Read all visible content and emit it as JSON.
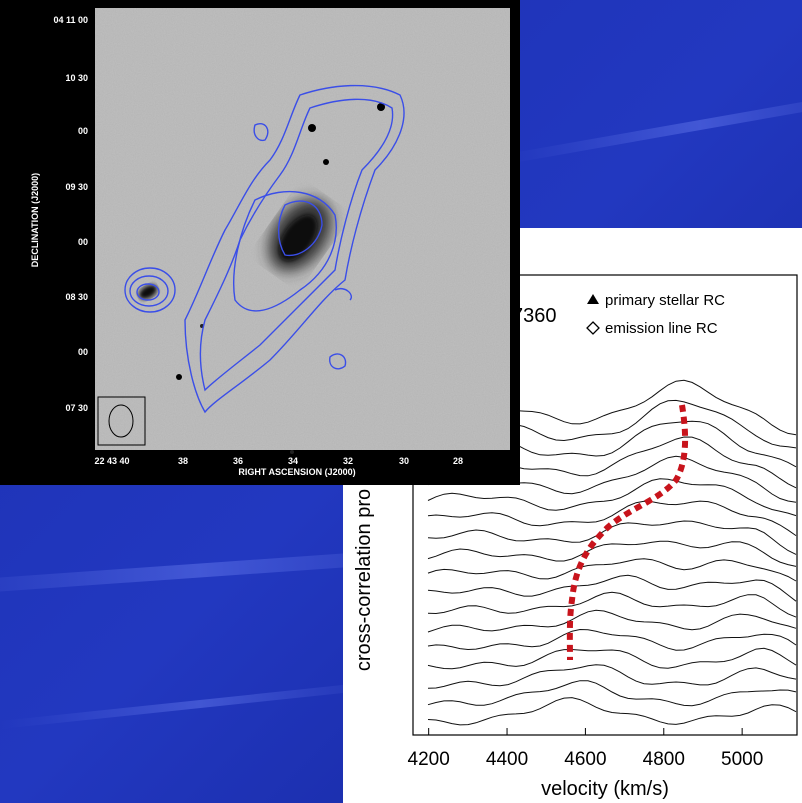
{
  "left_image": {
    "dec_labels": [
      "04 11 00",
      "10 30",
      "00",
      "09 30",
      "00",
      "08 30",
      "00",
      "07 30"
    ],
    "ra_labels": [
      "22 43 40",
      "38",
      "36",
      "34",
      "32",
      "30",
      "28"
    ],
    "ra_title": "RIGHT ASCENSION (J2000)",
    "dec_title": "DECLINATION (J2000)"
  },
  "right_plot": {
    "title": "7360",
    "legend": [
      "primary stellar RC",
      "emission line RC"
    ],
    "ylabel": "cross-correlation pro",
    "xlabel": "velocity (km/s)",
    "xlim": [
      4160,
      5140
    ],
    "xticks": [
      4200,
      4400,
      4600,
      4800,
      5000
    ]
  }
}
